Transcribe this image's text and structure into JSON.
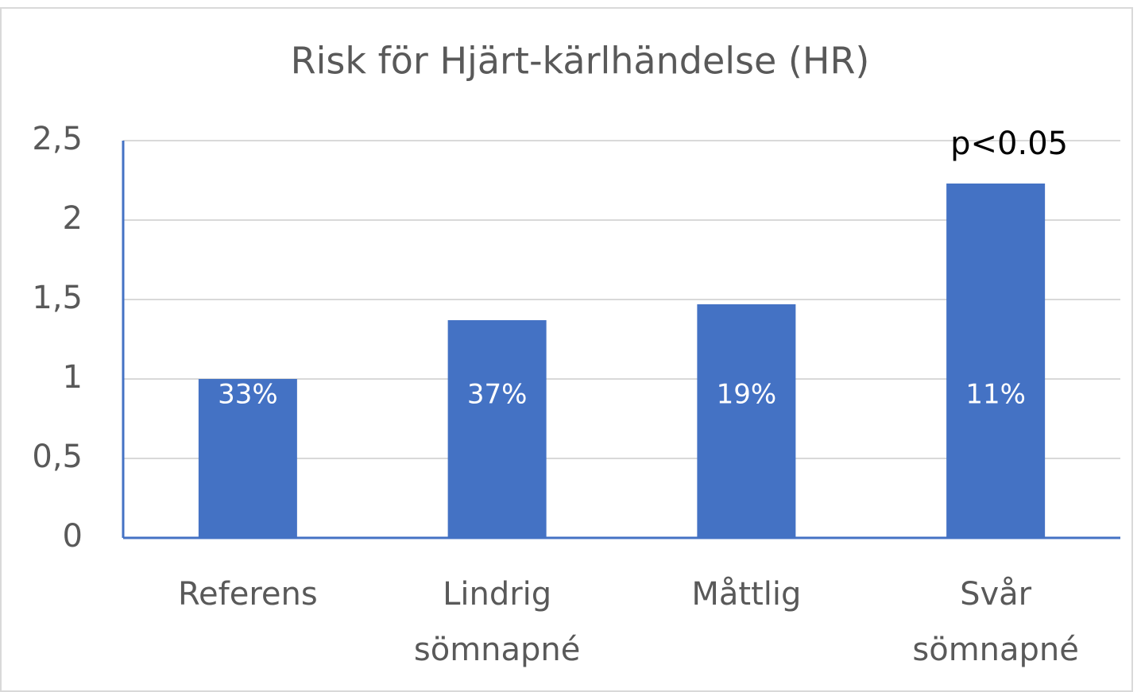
{
  "chart_data": {
    "type": "bar",
    "title": "Risk för Hjärt-kärlhändelse (HR)",
    "categories": [
      "Referens",
      "Lindrig sömnapné",
      "Måttlig",
      "Svår sömnapné"
    ],
    "values": [
      1.0,
      1.37,
      1.47,
      2.23
    ],
    "inner_labels": [
      "33%",
      "37%",
      "19%",
      "11%"
    ],
    "annotation": "p<0.05",
    "color": "#4472c4",
    "ylim": [
      0,
      2.5
    ],
    "yticks": [
      0,
      {
        "value": 0.5,
        "label": "0,5"
      },
      1,
      {
        "value": 1.5,
        "label": "1,5"
      },
      2,
      {
        "value": 2.5,
        "label": "2,5"
      }
    ],
    "grid": true
  }
}
